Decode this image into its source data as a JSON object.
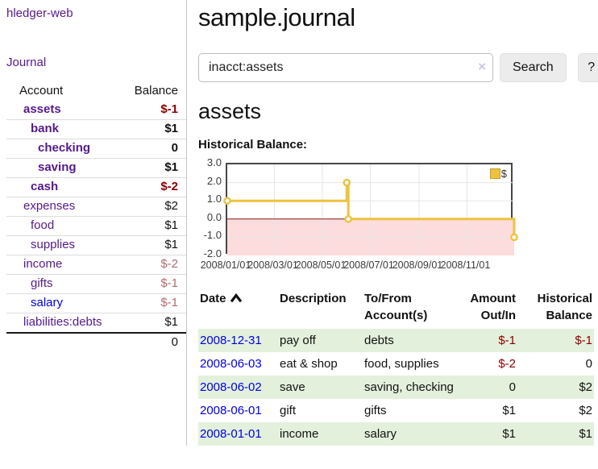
{
  "app": {
    "brand": "hledger-web",
    "nav_journal": "Journal"
  },
  "sidebar": {
    "header": {
      "account": "Account",
      "balance": "Balance"
    },
    "accounts": [
      {
        "name": "assets",
        "balance": "$-1",
        "level": 0,
        "bold": true,
        "negative": "strong",
        "link_color": "purple"
      },
      {
        "name": "bank",
        "balance": "$1",
        "level": 1,
        "bold": true,
        "negative": "none",
        "link_color": "purple"
      },
      {
        "name": "checking",
        "balance": "0",
        "level": 2,
        "bold": true,
        "negative": "none",
        "link_color": "purple"
      },
      {
        "name": "saving",
        "balance": "$1",
        "level": 2,
        "bold": true,
        "negative": "none",
        "link_color": "purple"
      },
      {
        "name": "cash",
        "balance": "$-2",
        "level": 1,
        "bold": true,
        "negative": "strong",
        "link_color": "purple"
      },
      {
        "name": "expenses",
        "balance": "$2",
        "level": 0,
        "bold": false,
        "negative": "none",
        "link_color": "purple"
      },
      {
        "name": "food",
        "balance": "$1",
        "level": 1,
        "bold": false,
        "negative": "none",
        "link_color": "purple"
      },
      {
        "name": "supplies",
        "balance": "$1",
        "level": 1,
        "bold": false,
        "negative": "none",
        "link_color": "purple"
      },
      {
        "name": "income",
        "balance": "$-2",
        "level": 0,
        "bold": false,
        "negative": "soft",
        "link_color": "purple"
      },
      {
        "name": "gifts",
        "balance": "$-1",
        "level": 1,
        "bold": false,
        "negative": "soft",
        "link_color": "purple"
      },
      {
        "name": "salary",
        "balance": "$-1",
        "level": 1,
        "bold": false,
        "negative": "soft",
        "link_color": "blue"
      },
      {
        "name": "liabilities:debts",
        "balance": "$1",
        "level": 0,
        "bold": false,
        "negative": "none",
        "link_color": "purple"
      }
    ],
    "total": "0"
  },
  "main": {
    "title": "sample.journal",
    "search": {
      "value": "inacct:assets",
      "clear_icon": "×",
      "search_label": "Search",
      "help_label": "?"
    },
    "account_heading": "assets",
    "chart_label": "Historical Balance:"
  },
  "chart_data": {
    "type": "line",
    "title": "Historical Balance:",
    "step": true,
    "series": [
      {
        "name": "$",
        "color": "#edc240",
        "points": [
          {
            "date": "2008-01-01",
            "value": 1
          },
          {
            "date": "2008-06-01",
            "value": 2
          },
          {
            "date": "2008-06-03",
            "value": 0
          },
          {
            "date": "2008-12-31",
            "value": -1
          }
        ]
      }
    ],
    "x_range": [
      "2008-01-01",
      "2008-12-31"
    ],
    "ylim": [
      -2,
      3
    ],
    "y_ticks": [
      "3.0",
      "2.0",
      "1.0",
      "0.0",
      "-1.0",
      "-2.0"
    ],
    "x_tick_labels": [
      "2008/01/01",
      "2008/03/01",
      "2008/05/01",
      "2008/07/01",
      "2008/09/01",
      "2008/11/01"
    ],
    "legend": {
      "label": "$",
      "position": "top-right"
    },
    "grid": true,
    "negative_region_color": "#fcdcdc",
    "zero_line_color": "#8b1a1a",
    "grid_color": "#e6e6e6",
    "border_color": "#474747"
  },
  "register": {
    "header_lines": [
      [
        "Date"
      ],
      [
        "Description"
      ],
      [
        "To/From",
        "Account(s)"
      ],
      [
        "Amount",
        "Out/In"
      ],
      [
        "Historical",
        "Balance"
      ]
    ],
    "sort_icon": "chevron-up",
    "rows": [
      {
        "date": "2008-12-31",
        "description": "pay off",
        "accounts": "debts",
        "amount": "$-1",
        "balance": "$-1",
        "amount_negative": true,
        "balance_negative": true
      },
      {
        "date": "2008-06-03",
        "description": "eat & shop",
        "accounts": "food, supplies",
        "amount": "$-2",
        "balance": "0",
        "amount_negative": true,
        "balance_negative": false
      },
      {
        "date": "2008-06-02",
        "description": "save",
        "accounts": "saving, checking",
        "amount": "0",
        "balance": "$2",
        "amount_negative": false,
        "balance_negative": false
      },
      {
        "date": "2008-06-01",
        "description": "gift",
        "accounts": "gifts",
        "amount": "$1",
        "balance": "$2",
        "amount_negative": false,
        "balance_negative": false
      },
      {
        "date": "2008-01-01",
        "description": "income",
        "accounts": "salary",
        "amount": "$1",
        "balance": "$1",
        "amount_negative": false,
        "balance_negative": false
      }
    ]
  }
}
